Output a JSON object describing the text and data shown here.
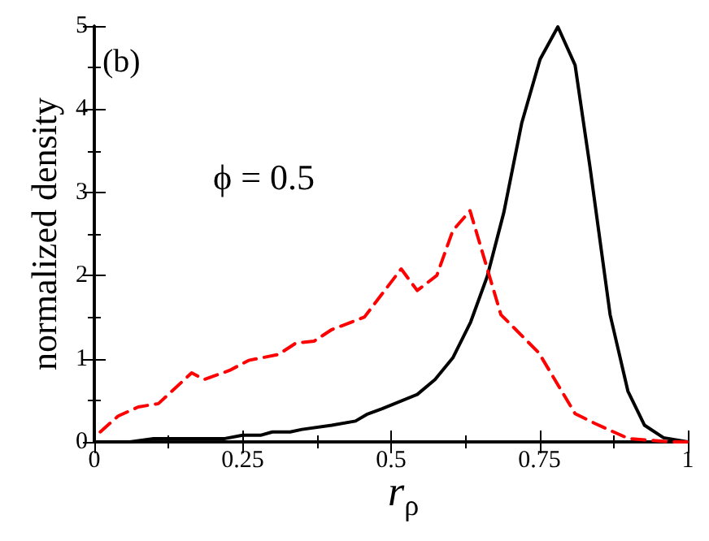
{
  "chart_data": {
    "type": "line",
    "xlabel": "r$_{ρ}$",
    "ylabel": "normalized density",
    "annotations": [
      "(b)",
      "ϕ = 0.5"
    ],
    "xlim": [
      0,
      1
    ],
    "xticks": [
      0,
      0.25,
      0.5,
      0.75,
      1
    ],
    "ylim": [
      0,
      5
    ],
    "yticks": [
      0,
      1,
      2,
      3,
      4,
      5
    ],
    "grid": false,
    "marker": "none",
    "series": [
      {
        "color": "#000000",
        "line_style": "solid",
        "x": [
          0,
          0.06,
          0.08,
          0.1,
          0.15,
          0.22,
          0.25,
          0.28,
          0.3,
          0.33,
          0.35,
          0.4,
          0.44,
          0.459,
          0.485,
          0.544,
          0.574,
          0.604,
          0.634,
          0.662,
          0.69,
          0.72,
          0.751,
          0.781,
          0.81,
          0.835,
          0.869,
          0.899,
          0.927,
          0.959,
          1
        ],
        "values": [
          0,
          0,
          0.02,
          0.04,
          0.04,
          0.04,
          0.08,
          0.08,
          0.12,
          0.12,
          0.15,
          0.2,
          0.25,
          0.33,
          0.4,
          0.57,
          0.75,
          1.01,
          1.44,
          1.99,
          2.76,
          3.83,
          4.6,
          4.99,
          4.53,
          3.31,
          1.53,
          0.61,
          0.2,
          0.05,
          0
        ]
      },
      {
        "color": "#ff0000",
        "line_style": "dashed",
        "x": [
          0.01,
          0.04,
          0.074,
          0.108,
          0.164,
          0.185,
          0.228,
          0.26,
          0.31,
          0.34,
          0.37,
          0.4,
          0.455,
          0.517,
          0.544,
          0.577,
          0.604,
          0.633,
          0.685,
          0.749,
          0.81,
          0.844,
          0.9,
          0.97,
          1
        ],
        "values": [
          0.12,
          0.31,
          0.42,
          0.46,
          0.83,
          0.75,
          0.86,
          0.98,
          1.05,
          1.19,
          1.21,
          1.35,
          1.5,
          2.08,
          1.82,
          2.0,
          2.54,
          2.78,
          1.53,
          1.07,
          0.34,
          0.22,
          0.04,
          0,
          0
        ]
      }
    ]
  }
}
